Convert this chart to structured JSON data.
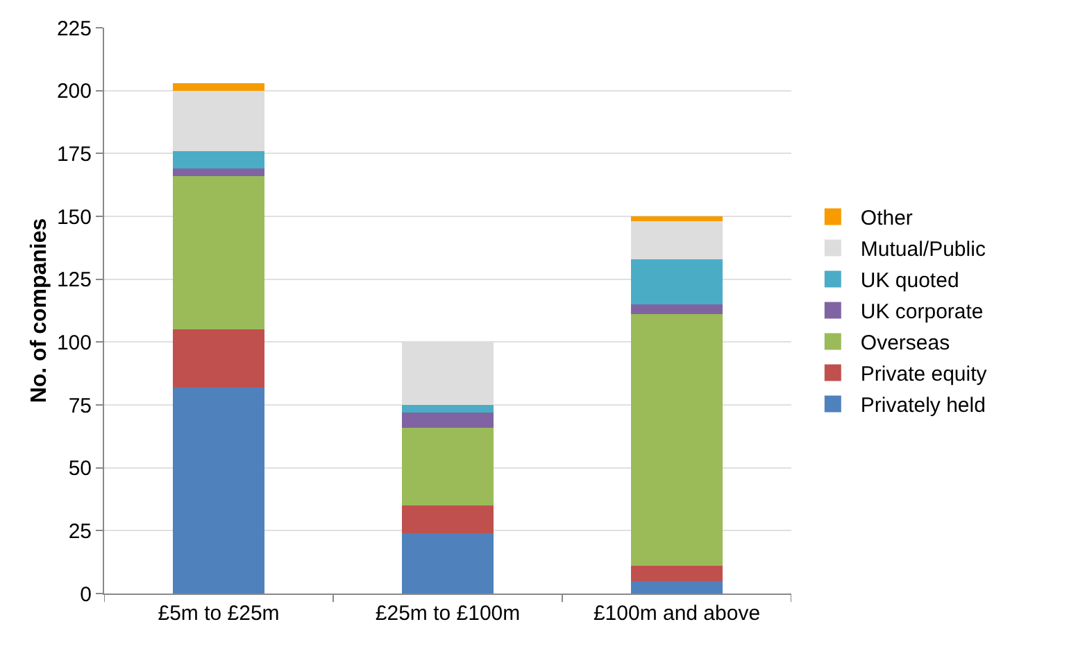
{
  "chart_data": {
    "type": "bar",
    "stacked": true,
    "ylabel": "No. of companies",
    "categories": [
      "£5m to £25m",
      "£25m to £100m",
      "£100m and above"
    ],
    "series": [
      {
        "name": "Privately held",
        "color": "#4f81bd",
        "values": [
          82,
          24,
          5
        ]
      },
      {
        "name": "Private equity",
        "color": "#c0504d",
        "values": [
          23,
          11,
          6
        ]
      },
      {
        "name": "Overseas",
        "color": "#9bbb59",
        "values": [
          61,
          31,
          100
        ]
      },
      {
        "name": "UK corporate",
        "color": "#8064a2",
        "values": [
          3,
          6,
          4
        ]
      },
      {
        "name": "UK quoted",
        "color": "#4bacc6",
        "values": [
          7,
          3,
          18
        ]
      },
      {
        "name": "Mutual/Public",
        "color": "#dddddd",
        "values": [
          24,
          25,
          15
        ]
      },
      {
        "name": "Other",
        "color": "#f79b00",
        "values": [
          3,
          0,
          2
        ]
      }
    ],
    "ylim": [
      0,
      225
    ],
    "yticks": [
      0,
      25,
      50,
      75,
      100,
      125,
      150,
      175,
      200,
      225
    ],
    "grid": "y",
    "legend": "right"
  }
}
